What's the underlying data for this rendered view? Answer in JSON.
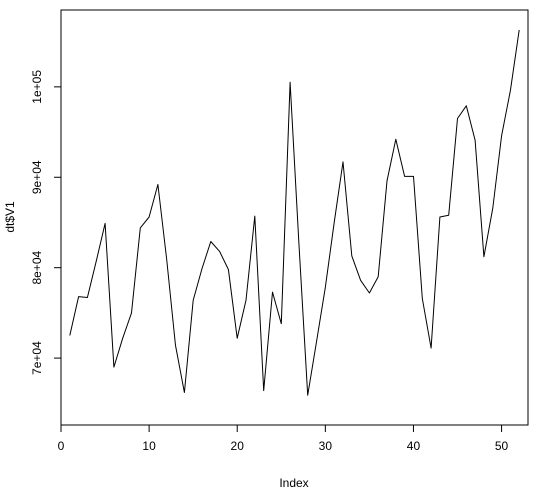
{
  "chart_data": {
    "type": "line",
    "title": "",
    "xlabel": "Index",
    "ylabel": "dt$V1",
    "xlim": [
      0,
      53
    ],
    "ylim": [
      62600,
      108500
    ],
    "x_ticks": [
      0,
      10,
      20,
      30,
      40,
      50
    ],
    "x_tick_labels": [
      "0",
      "10",
      "20",
      "30",
      "40",
      "50"
    ],
    "y_ticks": [
      70000,
      80000,
      90000,
      100000
    ],
    "y_tick_labels": [
      "7e+04",
      "8e+04",
      "9e+04",
      "1e+05"
    ],
    "grid": false,
    "legend": "none",
    "line_color": "#000000",
    "series": [
      {
        "x": [
          1,
          2,
          3,
          4,
          5,
          6,
          7,
          8,
          9,
          10,
          11,
          12,
          13,
          14,
          15,
          16,
          17,
          18,
          19,
          20,
          21,
          22,
          23,
          24,
          25,
          26,
          27,
          28,
          29,
          30,
          31,
          32,
          33,
          34,
          35,
          36,
          37,
          38,
          39,
          40,
          41,
          42,
          43,
          44,
          45,
          46,
          47,
          48,
          49,
          50,
          51,
          52
        ],
        "values": [
          72500,
          76800,
          76700,
          80700,
          84900,
          69000,
          72200,
          75000,
          84400,
          85600,
          89200,
          80900,
          71400,
          66200,
          76400,
          79900,
          82900,
          81800,
          79800,
          72200,
          76400,
          85700,
          66400,
          77300,
          73800,
          100500,
          82700,
          65900,
          71800,
          77800,
          85000,
          91700,
          81300,
          78600,
          77200,
          79000,
          89600,
          94200,
          90100,
          90100,
          76600,
          71100,
          85600,
          85800,
          96500,
          97900,
          94100,
          81200,
          86600,
          94600,
          99600,
          106300
        ]
      }
    ]
  }
}
